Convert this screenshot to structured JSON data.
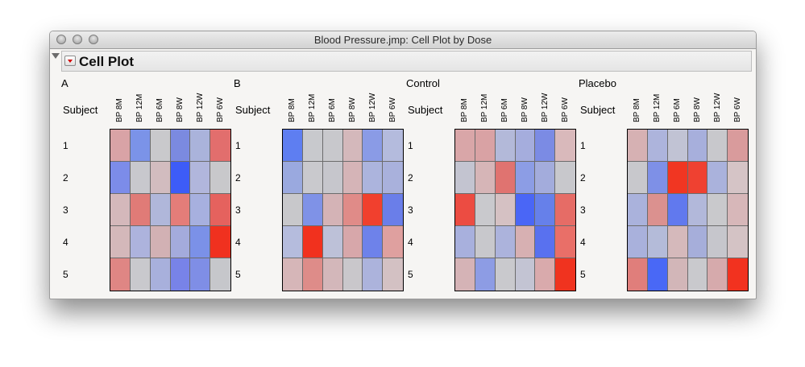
{
  "window": {
    "title": "Blood Pressure.jmp: Cell Plot by Dose"
  },
  "outline": {
    "title": "Cell Plot"
  },
  "row_header": "Subject",
  "columns": [
    "BP 8M",
    "BP 12M",
    "BP 6M",
    "BP 8W",
    "BP 12W",
    "BP 6W"
  ],
  "subjects": [
    "1",
    "2",
    "3",
    "4",
    "5"
  ],
  "panels": [
    {
      "label": "A",
      "cells": [
        [
          "#d9a3a6",
          "#7b93e8",
          "#c9c9cc",
          "#7b8ae0",
          "#aab3db",
          "#e26e6d"
        ],
        [
          "#7c8ce9",
          "#c8c8cd",
          "#d2bcbf",
          "#3d5cf7",
          "#b1b6dc",
          "#c8c8cb"
        ],
        [
          "#d4b8bb",
          "#e07b77",
          "#b0b7da",
          "#e47d79",
          "#a7b0df",
          "#e5625e"
        ],
        [
          "#d4b8ba",
          "#adb3dd",
          "#d2b1b4",
          "#a4abdc",
          "#7b91e8",
          "#f0311f"
        ],
        [
          "#df8684",
          "#c9c9cd",
          "#a8b0dc",
          "#7883e8",
          "#7f8ee6",
          "#c6c7cb"
        ]
      ]
    },
    {
      "label": "B",
      "cells": [
        [
          "#5e7ef1",
          "#c8c9cd",
          "#c8c8cc",
          "#d4b8bb",
          "#8a9be6",
          "#b4bbdd"
        ],
        [
          "#9aa9df",
          "#c9c9cd",
          "#c6c6cc",
          "#d5b4b7",
          "#acb4dd",
          "#a9b1dc"
        ],
        [
          "#c8c8cb",
          "#7f92e7",
          "#d4b3b6",
          "#e08b88",
          "#f1402e",
          "#6a7ee9"
        ],
        [
          "#b5bcdd",
          "#f1311e",
          "#bdc1d8",
          "#d7a7aa",
          "#6e82ea",
          "#dfa09f"
        ],
        [
          "#d6b6b8",
          "#de8c89",
          "#d3b7ba",
          "#c9c7cb",
          "#acb3dc",
          "#d3c1c3"
        ]
      ]
    },
    {
      "label": "Control",
      "cells": [
        [
          "#d9a6a8",
          "#d9a2a4",
          "#b3b9d9",
          "#a5addd",
          "#7b8be4",
          "#d9b9bb"
        ],
        [
          "#c3c4d0",
          "#d6b5b7",
          "#e07370",
          "#8c9de5",
          "#a3acdc",
          "#c8c8cc"
        ],
        [
          "#ec4c42",
          "#c9c9cd",
          "#d5c1c3",
          "#4a66f6",
          "#6680ea",
          "#e66c66"
        ],
        [
          "#a8b0dd",
          "#c8c8cc",
          "#acb3dc",
          "#d7b0b2",
          "#5971ef",
          "#e96f68"
        ],
        [
          "#d5b3b6",
          "#8d9ce4",
          "#c9c9cd",
          "#c3c4d3",
          "#d9aaac",
          "#f0331f"
        ]
      ]
    },
    {
      "label": "Placebo",
      "cells": [
        [
          "#d6b1b3",
          "#adb4dc",
          "#c1c3d4",
          "#a7afdc",
          "#c8c8cc",
          "#d99b9c"
        ],
        [
          "#c8c8cc",
          "#7e90e7",
          "#f13622",
          "#ef4131",
          "#aab2dc",
          "#d5c4c6"
        ],
        [
          "#aab2dc",
          "#db918f",
          "#6179ee",
          "#b2b8da",
          "#c9c9cc",
          "#d7b7b9"
        ],
        [
          "#a9b1dc",
          "#b4bbd9",
          "#d5b9bb",
          "#a6aeda",
          "#c6c6cc",
          "#d4c3c5"
        ],
        [
          "#e07e7b",
          "#4968f6",
          "#d2b6b8",
          "#c9c9cd",
          "#d6aaac",
          "#f2321f"
        ]
      ]
    }
  ]
}
